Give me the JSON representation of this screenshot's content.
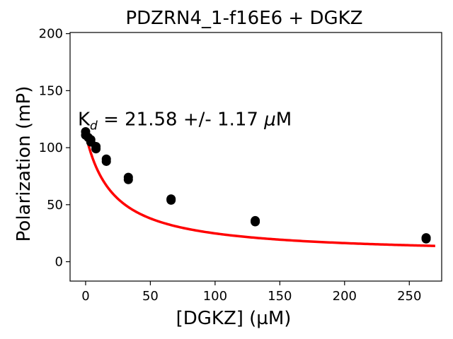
{
  "chart_data": {
    "type": "scatter",
    "title": "PDZRN4_1-f16E6 + DGKZ",
    "xlabel": "[DGKZ] (µM)",
    "ylabel": "Polarization (mP)",
    "xlim": [
      -12,
      275
    ],
    "ylim": [
      -17,
      201
    ],
    "xticks": [
      0,
      50,
      100,
      150,
      200,
      250
    ],
    "yticks": [
      0,
      50,
      100,
      150,
      200
    ],
    "grid": false,
    "annotation": {
      "prefix": "K",
      "subscript": "d",
      "middle": " = 21.58 +/- 1.17 ",
      "mu": "μ",
      "unit": "M",
      "x": -6,
      "y": 125
    },
    "series": [
      {
        "type": "scatter",
        "color": "#000000",
        "x": [
          0,
          0,
          2,
          4,
          4,
          8,
          8,
          16,
          16,
          33,
          33,
          66,
          66,
          131,
          131,
          263,
          263
        ],
        "y": [
          114,
          111,
          109,
          107,
          105,
          101,
          99,
          90,
          88,
          74,
          72,
          55,
          54,
          36,
          35,
          21,
          20
        ]
      },
      {
        "type": "line",
        "color": "#ff0000",
        "fit": {
          "model": "y = bottom + (top - bottom) * Kd / (Kd + x)",
          "top": 112,
          "bottom": 6,
          "Kd": 21.58,
          "x_range": [
            0,
            270
          ]
        }
      }
    ]
  }
}
